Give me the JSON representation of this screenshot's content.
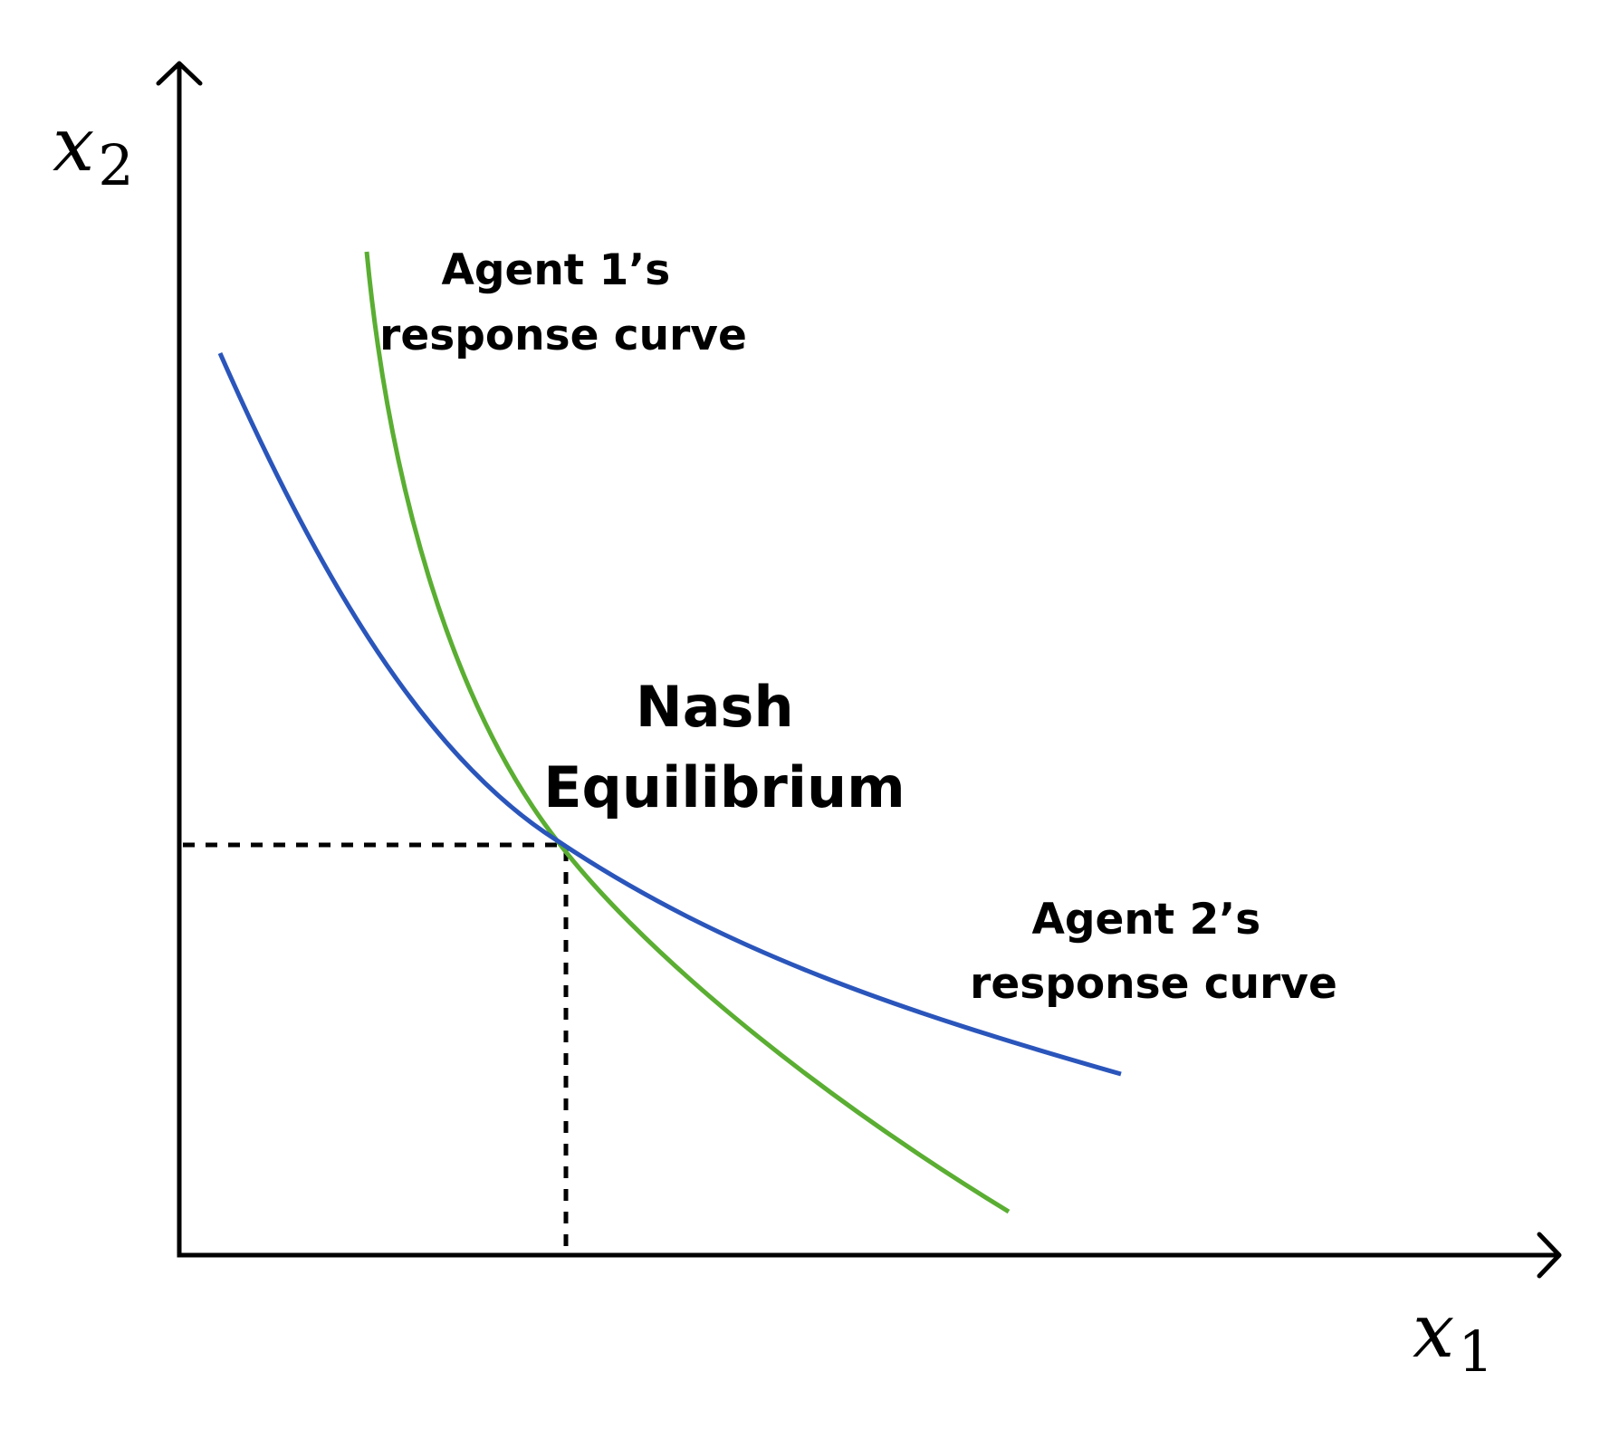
{
  "axes": {
    "x": {
      "symbol": "x",
      "subscript": "1"
    },
    "y": {
      "symbol": "x",
      "subscript": "2"
    }
  },
  "curves": {
    "agent1": {
      "label_line1": "Agent 1’s",
      "label_line2": "response curve",
      "color": "#5aae32"
    },
    "agent2": {
      "label_line1": "Agent 2’s",
      "label_line2": "response curve",
      "color": "#2a55bb"
    }
  },
  "equilibrium": {
    "label_line1": "Nash",
    "label_line2": "Equilibrium"
  }
}
